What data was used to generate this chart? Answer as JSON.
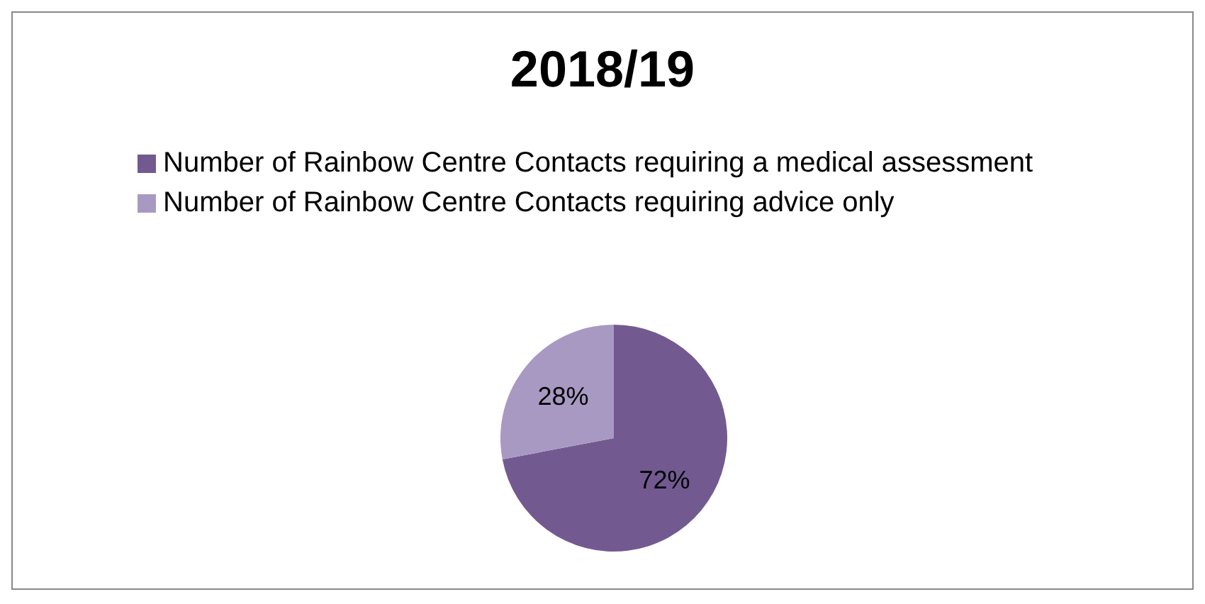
{
  "chart_data": {
    "type": "pie",
    "title": "2018/19",
    "categories": [
      "Number of Rainbow Centre Contacts requiring a medical assessment",
      "Number of Rainbow Centre Contacts requiring advice only"
    ],
    "values": [
      72,
      28
    ],
    "colors": [
      "#725a91",
      "#a899c2"
    ],
    "value_labels": [
      "72%",
      "28%"
    ],
    "legend": "top"
  }
}
